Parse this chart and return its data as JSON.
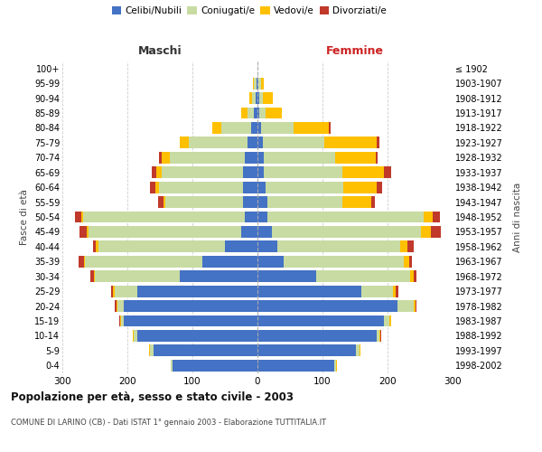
{
  "age_groups": [
    "0-4",
    "5-9",
    "10-14",
    "15-19",
    "20-24",
    "25-29",
    "30-34",
    "35-39",
    "40-44",
    "45-49",
    "50-54",
    "55-59",
    "60-64",
    "65-69",
    "70-74",
    "75-79",
    "80-84",
    "85-89",
    "90-94",
    "95-99",
    "100+"
  ],
  "birth_years": [
    "1998-2002",
    "1993-1997",
    "1988-1992",
    "1983-1987",
    "1978-1982",
    "1973-1977",
    "1968-1972",
    "1963-1967",
    "1958-1962",
    "1953-1957",
    "1948-1952",
    "1943-1947",
    "1938-1942",
    "1933-1937",
    "1928-1932",
    "1923-1927",
    "1918-1922",
    "1913-1917",
    "1908-1912",
    "1903-1907",
    "≤ 1902"
  ],
  "maschi": {
    "celibi": [
      130,
      160,
      185,
      205,
      205,
      185,
      120,
      85,
      50,
      25,
      20,
      22,
      22,
      22,
      20,
      15,
      10,
      5,
      3,
      2,
      0
    ],
    "coniugati": [
      3,
      5,
      5,
      5,
      10,
      35,
      130,
      180,
      195,
      235,
      248,
      120,
      130,
      125,
      115,
      90,
      45,
      10,
      5,
      3,
      0
    ],
    "vedovi": [
      1,
      1,
      1,
      1,
      2,
      2,
      2,
      2,
      3,
      3,
      3,
      3,
      5,
      8,
      12,
      15,
      15,
      10,
      5,
      2,
      0
    ],
    "divorziati": [
      0,
      1,
      1,
      1,
      2,
      3,
      5,
      8,
      5,
      10,
      10,
      8,
      8,
      8,
      5,
      0,
      0,
      0,
      0,
      0,
      0
    ]
  },
  "femmine": {
    "nubili": [
      118,
      152,
      183,
      195,
      215,
      160,
      90,
      40,
      30,
      22,
      15,
      15,
      12,
      10,
      10,
      8,
      5,
      3,
      3,
      2,
      0
    ],
    "coniugate": [
      3,
      5,
      5,
      8,
      25,
      48,
      145,
      185,
      190,
      230,
      240,
      115,
      120,
      120,
      110,
      95,
      50,
      10,
      5,
      3,
      0
    ],
    "vedove": [
      1,
      1,
      1,
      2,
      3,
      5,
      5,
      8,
      10,
      15,
      15,
      45,
      52,
      65,
      62,
      80,
      55,
      25,
      15,
      5,
      0
    ],
    "divorziate": [
      0,
      1,
      1,
      1,
      2,
      3,
      5,
      5,
      10,
      15,
      10,
      5,
      8,
      10,
      3,
      5,
      3,
      0,
      0,
      0,
      0
    ]
  },
  "colors": {
    "celibi": "#4472c4",
    "coniugati": "#c8dba3",
    "vedovi": "#ffc000",
    "divorziati": "#c0392b"
  },
  "title": "Popolazione per età, sesso e stato civile - 2003",
  "subtitle": "COMUNE DI LARINO (CB) - Dati ISTAT 1° gennaio 2003 - Elaborazione TUTTITALIA.IT",
  "maschi_label": "Maschi",
  "femmine_label": "Femmine",
  "ylabel_left": "Fasce di età",
  "ylabel_right": "Anni di nascita",
  "xlim": 300,
  "bg_color": "#ffffff",
  "grid_color": "#cccccc",
  "legend_labels": [
    "Celibi/Nubili",
    "Coniugati/e",
    "Vedovi/e",
    "Divorziati/e"
  ]
}
